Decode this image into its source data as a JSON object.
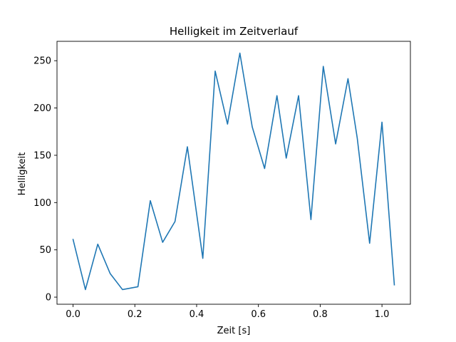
{
  "chart_data": {
    "type": "line",
    "title": "Helligkeit im Zeitverlauf",
    "xlabel": "Zeit [s]",
    "ylabel": "Helligkeit",
    "xlim": [
      -0.052,
      1.092
    ],
    "ylim": [
      -7.5,
      270.5
    ],
    "grid": false,
    "legend": "none",
    "x_ticks": [
      {
        "value": 0.0,
        "label": "0.0"
      },
      {
        "value": 0.2,
        "label": "0.2"
      },
      {
        "value": 0.4,
        "label": "0.4"
      },
      {
        "value": 0.6,
        "label": "0.6"
      },
      {
        "value": 0.8,
        "label": "0.8"
      },
      {
        "value": 1.0,
        "label": "1.0"
      }
    ],
    "y_ticks": [
      {
        "value": 0,
        "label": "0"
      },
      {
        "value": 50,
        "label": "50"
      },
      {
        "value": 100,
        "label": "100"
      },
      {
        "value": 150,
        "label": "150"
      },
      {
        "value": 200,
        "label": "200"
      },
      {
        "value": 250,
        "label": "250"
      }
    ],
    "series": [
      {
        "color": "#1f77b4",
        "x": [
          0.0,
          0.04,
          0.08,
          0.12,
          0.16,
          0.21,
          0.25,
          0.29,
          0.33,
          0.37,
          0.42,
          0.46,
          0.5,
          0.54,
          0.58,
          0.62,
          0.66,
          0.69,
          0.73,
          0.77,
          0.81,
          0.85,
          0.89,
          0.92,
          0.96,
          1.0,
          1.04
        ],
        "y": [
          61,
          8,
          56,
          25,
          8,
          11,
          102,
          58,
          80,
          159,
          41,
          239,
          183,
          258,
          180,
          136,
          213,
          147,
          213,
          82,
          244,
          162,
          231,
          168,
          57,
          185,
          13
        ]
      }
    ]
  }
}
